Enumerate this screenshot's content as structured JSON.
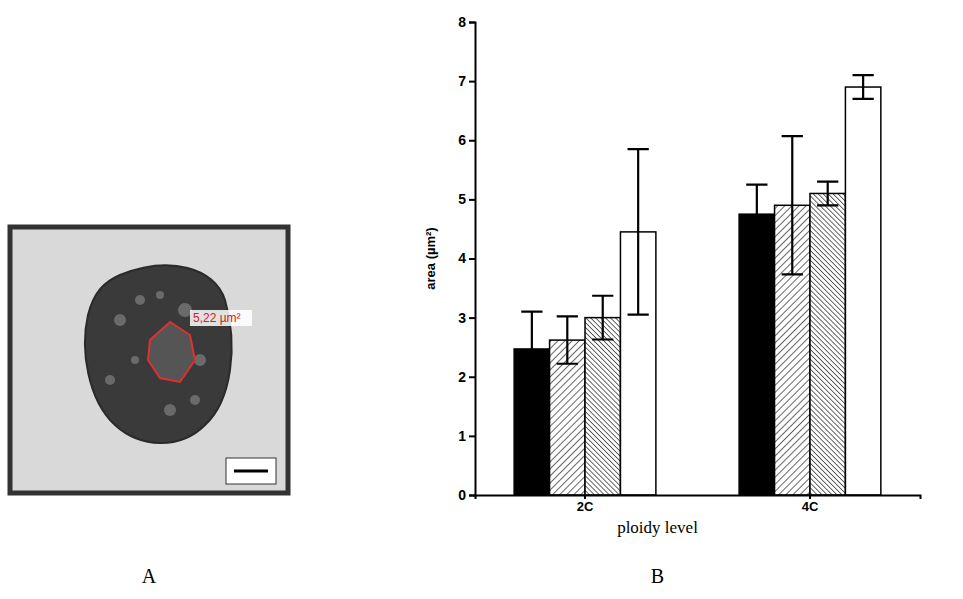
{
  "chart_data": {
    "type": "bar",
    "x_label": "ploidy level",
    "y_label": "area (µm²)",
    "categories": [
      "2C",
      "4C"
    ],
    "series": [
      {
        "color": "#000000",
        "values": [
          2.47,
          4.75
        ],
        "errors": [
          0.63,
          0.5
        ]
      },
      {
        "color": "#000000",
        "values": [
          2.62,
          4.9
        ],
        "errors": [
          0.4,
          1.17
        ]
      },
      {
        "color": "#000000",
        "values": [
          3.0,
          5.1
        ],
        "errors": [
          0.37,
          0.2
        ]
      },
      {
        "color": "#ffffff",
        "values": [
          4.45,
          6.9
        ],
        "errors": [
          1.4,
          0.2
        ]
      }
    ],
    "ylim": [
      0,
      8
    ],
    "yticks": [
      0,
      1,
      2,
      3,
      4,
      5,
      6,
      7,
      8
    ],
    "grid": false
  },
  "panels": [
    {
      "label": "A",
      "annotation": "5,22 µm²"
    },
    {
      "label": "B"
    }
  ]
}
